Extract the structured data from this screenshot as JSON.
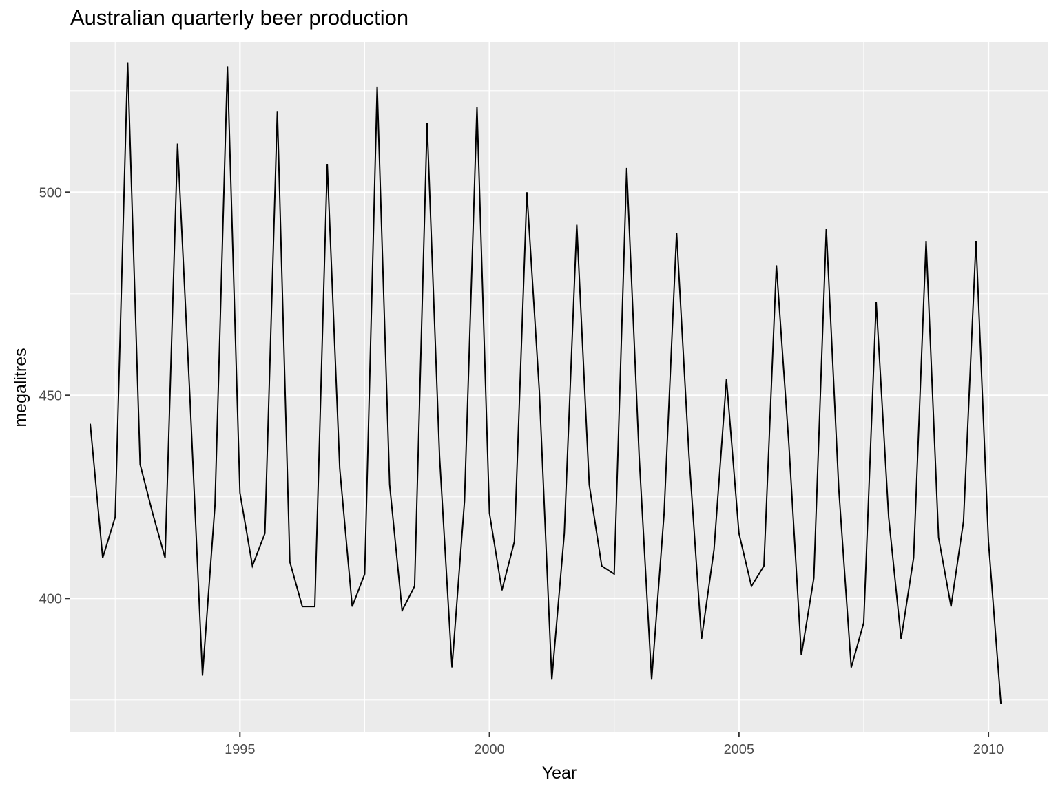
{
  "chart_data": {
    "type": "line",
    "title": "Australian quarterly beer production",
    "xlabel": "Year",
    "ylabel": "megalitres",
    "x_ticks": [
      1995,
      2000,
      2005,
      2010
    ],
    "y_ticks": [
      400,
      450,
      500
    ],
    "xlim": [
      1991.6,
      2011.2
    ],
    "ylim": [
      367,
      537
    ],
    "grid": true,
    "line_color": "#000000",
    "panel_background": "#ebebeb",
    "grid_color": "#ffffff",
    "series": [
      {
        "x": [
          1992.0,
          1992.25,
          1992.5,
          1992.75,
          1993.0,
          1993.25,
          1993.5,
          1993.75,
          1994.0,
          1994.25,
          1994.5,
          1994.75,
          1995.0,
          1995.25,
          1995.5,
          1995.75,
          1996.0,
          1996.25,
          1996.5,
          1996.75,
          1997.0,
          1997.25,
          1997.5,
          1997.75,
          1998.0,
          1998.25,
          1998.5,
          1998.75,
          1999.0,
          1999.25,
          1999.5,
          1999.75,
          2000.0,
          2000.25,
          2000.5,
          2000.75,
          2001.0,
          2001.25,
          2001.5,
          2001.75,
          2002.0,
          2002.25,
          2002.5,
          2002.75,
          2003.0,
          2003.25,
          2003.5,
          2003.75,
          2004.0,
          2004.25,
          2004.5,
          2004.75,
          2005.0,
          2005.25,
          2005.5,
          2005.75,
          2006.0,
          2006.25,
          2006.5,
          2006.75,
          2007.0,
          2007.25,
          2007.5,
          2007.75,
          2008.0,
          2008.25,
          2008.5,
          2008.75,
          2009.0,
          2009.25,
          2009.5,
          2009.75,
          2010.0,
          2010.25
        ],
        "values": [
          443,
          410,
          420,
          532,
          433,
          421,
          410,
          512,
          449,
          381,
          423,
          531,
          426,
          408,
          416,
          520,
          409,
          398,
          398,
          507,
          432,
          398,
          406,
          526,
          428,
          397,
          403,
          517,
          435,
          383,
          424,
          521,
          421,
          402,
          414,
          500,
          451,
          380,
          416,
          492,
          428,
          408,
          406,
          506,
          435,
          380,
          421,
          490,
          435,
          390,
          412,
          454,
          416,
          403,
          408,
          482,
          438,
          386,
          405,
          491,
          427,
          383,
          394,
          473,
          420,
          390,
          410,
          488,
          415,
          398,
          419,
          488,
          414,
          374
        ]
      }
    ]
  }
}
